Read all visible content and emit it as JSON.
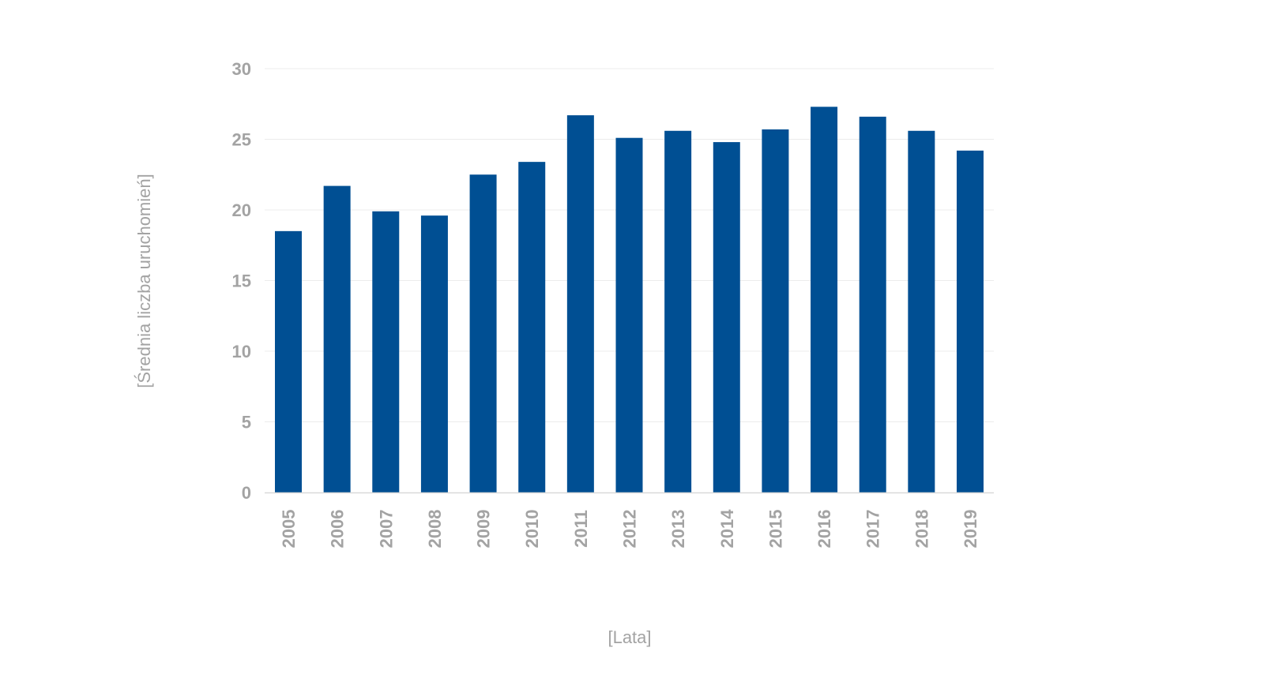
{
  "chart_data": {
    "type": "bar",
    "title": "",
    "xlabel": "[Lata]",
    "ylabel": "[Średnia liczba uruchomień]",
    "categories": [
      "2005",
      "2006",
      "2007",
      "2008",
      "2009",
      "2010",
      "2011",
      "2012",
      "2013",
      "2014",
      "2015",
      "2016",
      "2017",
      "2018",
      "2019"
    ],
    "values": [
      18.5,
      21.7,
      19.9,
      19.6,
      22.5,
      23.4,
      26.7,
      25.1,
      25.6,
      24.8,
      25.7,
      27.3,
      26.6,
      25.6,
      24.2
    ],
    "ylim": [
      0,
      30
    ],
    "yticks": [
      "0",
      "5",
      "10",
      "15",
      "20",
      "25",
      "30"
    ],
    "grid": true,
    "legend": "none",
    "bar_color": "#004f93"
  }
}
